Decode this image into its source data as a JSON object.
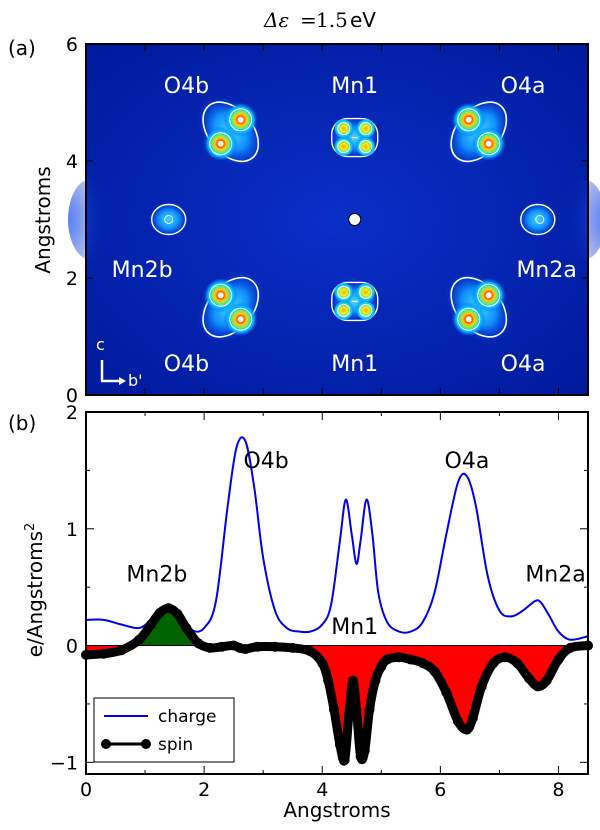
{
  "chart_data": [
    {
      "panel_label": "(a)",
      "type": "heatmap",
      "title": "Δε = 1.5 eV",
      "title_parts": {
        "symbol": "Δε",
        "equals": "=",
        "value": "1.5",
        "unit": "eV"
      },
      "xlim": [
        0,
        8.5
      ],
      "ylim": [
        0,
        6
      ],
      "ylabel": "Angstroms",
      "yticks": [
        "0",
        "2",
        "4",
        "6"
      ],
      "colormap": "jet",
      "atoms": [
        {
          "label": "O4b",
          "x": 2.45,
          "y": 4.5,
          "text_x": 1.7,
          "text_y": 5.3,
          "kind": "pair",
          "tilt": -1
        },
        {
          "label": "Mn1",
          "x": 4.55,
          "y": 4.4,
          "text_x": 4.55,
          "text_y": 5.3,
          "kind": "clover"
        },
        {
          "label": "O4a",
          "x": 6.65,
          "y": 4.5,
          "text_x": 7.4,
          "text_y": 5.3,
          "kind": "pair",
          "tilt": 1
        },
        {
          "label": "Mn2b",
          "x": 1.4,
          "y": 3.0,
          "text_x": 0.95,
          "text_y": 2.15,
          "kind": "blob"
        },
        {
          "label": "Mn2a",
          "x": 7.65,
          "y": 3.0,
          "text_x": 7.8,
          "text_y": 2.15,
          "kind": "blob"
        },
        {
          "label": "O4b",
          "x": 2.45,
          "y": 1.5,
          "text_x": 1.7,
          "text_y": 0.55,
          "kind": "pair",
          "tilt": 1
        },
        {
          "label": "Mn1",
          "x": 4.55,
          "y": 1.6,
          "text_x": 4.55,
          "text_y": 0.55,
          "kind": "clover"
        },
        {
          "label": "O4a",
          "x": 6.65,
          "y": 1.5,
          "text_x": 7.4,
          "text_y": 0.55,
          "kind": "pair",
          "tilt": -1
        }
      ],
      "center_marker": {
        "x": 4.55,
        "y": 3.0
      },
      "axes_label": {
        "vertical": "c",
        "horizontal": "b'"
      }
    },
    {
      "panel_label": "(b)",
      "type": "line",
      "xlabel": "Angstroms",
      "ylabel": "e/Angstroms",
      "ylabel_superscript": "2",
      "xlim": [
        0,
        8.5
      ],
      "ylim": [
        -1.1,
        2.0
      ],
      "xticks": [
        "0",
        "2",
        "4",
        "6",
        "8"
      ],
      "yticks": [
        "−1",
        "0",
        "1",
        "2"
      ],
      "series": [
        {
          "name": "charge",
          "color": "#0000ee",
          "x": [
            0,
            0.3,
            0.6,
            0.9,
            1.1,
            1.25,
            1.4,
            1.6,
            1.8,
            2.0,
            2.2,
            2.4,
            2.55,
            2.7,
            2.85,
            3.0,
            3.2,
            3.4,
            3.6,
            3.8,
            4.0,
            4.15,
            4.3,
            4.4,
            4.5,
            4.58,
            4.65,
            4.75,
            4.85,
            4.95,
            5.1,
            5.3,
            5.5,
            5.7,
            5.9,
            6.1,
            6.3,
            6.45,
            6.6,
            6.8,
            7.0,
            7.2,
            7.4,
            7.6,
            7.7,
            7.85,
            8.0,
            8.2,
            8.5
          ],
          "y": [
            0.22,
            0.22,
            0.18,
            0.15,
            0.22,
            0.3,
            0.32,
            0.25,
            0.13,
            0.15,
            0.38,
            1.2,
            1.7,
            1.75,
            1.35,
            0.75,
            0.3,
            0.15,
            0.12,
            0.12,
            0.18,
            0.35,
            0.9,
            1.25,
            0.95,
            0.7,
            0.9,
            1.25,
            0.95,
            0.45,
            0.2,
            0.12,
            0.12,
            0.2,
            0.45,
            0.95,
            1.4,
            1.45,
            1.2,
            0.6,
            0.3,
            0.25,
            0.3,
            0.38,
            0.37,
            0.25,
            0.12,
            0.05,
            0.08
          ]
        },
        {
          "name": "spin",
          "color": "#000000",
          "x": [
            0,
            0.3,
            0.6,
            0.9,
            1.1,
            1.25,
            1.4,
            1.55,
            1.7,
            1.9,
            2.1,
            2.3,
            2.5,
            2.6,
            2.7,
            2.9,
            3.2,
            3.5,
            3.8,
            4.0,
            4.1,
            4.2,
            4.3,
            4.38,
            4.45,
            4.52,
            4.58,
            4.65,
            4.72,
            4.8,
            4.9,
            5.0,
            5.1,
            5.3,
            5.5,
            5.7,
            5.9,
            6.1,
            6.3,
            6.45,
            6.55,
            6.7,
            6.9,
            7.1,
            7.3,
            7.5,
            7.65,
            7.8,
            8.0,
            8.2,
            8.5
          ],
          "y": [
            -0.08,
            -0.07,
            -0.04,
            0.05,
            0.18,
            0.28,
            0.32,
            0.27,
            0.15,
            0.02,
            -0.02,
            -0.01,
            0.0,
            -0.02,
            -0.03,
            -0.01,
            -0.01,
            -0.02,
            -0.05,
            -0.15,
            -0.3,
            -0.55,
            -0.85,
            -0.98,
            -0.6,
            -0.3,
            -0.55,
            -0.95,
            -0.9,
            -0.55,
            -0.3,
            -0.18,
            -0.12,
            -0.1,
            -0.12,
            -0.15,
            -0.22,
            -0.4,
            -0.65,
            -0.72,
            -0.62,
            -0.35,
            -0.15,
            -0.1,
            -0.15,
            -0.28,
            -0.35,
            -0.3,
            -0.12,
            -0.02,
            0.0
          ]
        }
      ],
      "annotations": [
        {
          "text": "O4b",
          "x": 3.05,
          "y": 1.52
        },
        {
          "text": "O4a",
          "x": 6.45,
          "y": 1.52
        },
        {
          "text": "Mn2b",
          "x": 1.2,
          "y": 0.55
        },
        {
          "text": "Mn2a",
          "x": 7.95,
          "y": 0.55
        },
        {
          "text": "Mn1",
          "x": 4.55,
          "y": 0.1
        }
      ],
      "fill_colors": {
        "positive": "#006400",
        "negative": "#ff0000"
      },
      "legend": {
        "position": "bottom-left",
        "entries": [
          "charge",
          "spin"
        ]
      }
    }
  ]
}
